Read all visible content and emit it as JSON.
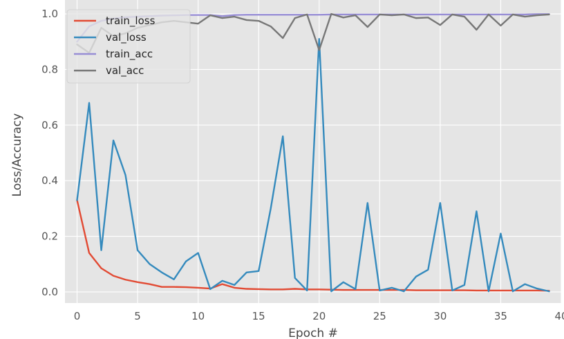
{
  "chart_data": {
    "type": "line",
    "title": "",
    "xlabel": "Epoch #",
    "ylabel": "Loss/Accuracy",
    "xlim": [
      -1,
      40
    ],
    "ylim": [
      -0.04,
      1.05
    ],
    "xticks": [
      0,
      5,
      10,
      15,
      20,
      25,
      30,
      35,
      40
    ],
    "yticks": [
      0.0,
      0.2,
      0.4,
      0.6,
      0.8,
      1.0
    ],
    "xtick_labels": [
      "0",
      "5",
      "10",
      "15",
      "20",
      "25",
      "30",
      "35",
      "40"
    ],
    "ytick_labels": [
      "0.0",
      "0.2",
      "0.4",
      "0.6",
      "0.8",
      "1.0"
    ],
    "grid": true,
    "legend_position": "top-left",
    "x": [
      0,
      1,
      2,
      3,
      4,
      5,
      6,
      7,
      8,
      9,
      10,
      11,
      12,
      13,
      14,
      15,
      16,
      17,
      18,
      19,
      20,
      21,
      22,
      23,
      24,
      25,
      26,
      27,
      28,
      29,
      30,
      31,
      32,
      33,
      34,
      35,
      36,
      37,
      38,
      39
    ],
    "series": [
      {
        "name": "train_loss",
        "color": "#E24A33",
        "values": [
          0.33,
          0.14,
          0.085,
          0.058,
          0.044,
          0.035,
          0.028,
          0.018,
          0.018,
          0.017,
          0.015,
          0.012,
          0.028,
          0.015,
          0.011,
          0.01,
          0.009,
          0.009,
          0.011,
          0.009,
          0.009,
          0.008,
          0.007,
          0.007,
          0.007,
          0.007,
          0.007,
          0.007,
          0.006,
          0.006,
          0.006,
          0.006,
          0.006,
          0.005,
          0.005,
          0.005,
          0.005,
          0.005,
          0.005,
          0.004
        ]
      },
      {
        "name": "val_loss",
        "color": "#348ABD",
        "values": [
          0.33,
          0.68,
          0.15,
          0.545,
          0.42,
          0.15,
          0.1,
          0.07,
          0.045,
          0.11,
          0.14,
          0.01,
          0.04,
          0.025,
          0.07,
          0.075,
          0.3,
          0.56,
          0.05,
          0.005,
          0.91,
          0.002,
          0.035,
          0.01,
          0.32,
          0.005,
          0.015,
          0.002,
          0.055,
          0.08,
          0.32,
          0.005,
          0.025,
          0.29,
          0.002,
          0.21,
          0.002,
          0.028,
          0.012,
          0.002
        ]
      },
      {
        "name": "train_acc",
        "color": "#988ED5",
        "values": [
          0.9,
          0.955,
          0.975,
          0.983,
          0.988,
          0.99,
          0.992,
          0.994,
          0.995,
          0.996,
          0.996,
          0.996,
          0.992,
          0.996,
          0.997,
          0.997,
          0.997,
          0.997,
          0.997,
          0.997,
          0.997,
          0.998,
          0.998,
          0.998,
          0.998,
          0.998,
          0.998,
          0.998,
          0.998,
          0.998,
          0.998,
          0.998,
          0.998,
          0.998,
          0.998,
          0.998,
          0.998,
          0.998,
          0.999,
          0.999
        ]
      },
      {
        "name": "val_acc",
        "color": "#777777",
        "values": [
          0.89,
          0.86,
          0.95,
          0.92,
          0.93,
          0.95,
          0.96,
          0.97,
          0.975,
          0.97,
          0.965,
          0.995,
          0.985,
          0.99,
          0.978,
          0.975,
          0.955,
          0.913,
          0.985,
          0.998,
          0.87,
          1.0,
          0.987,
          0.995,
          0.953,
          0.998,
          0.995,
          0.998,
          0.985,
          0.987,
          0.96,
          0.998,
          0.99,
          0.943,
          0.998,
          0.958,
          0.998,
          0.99,
          0.995,
          0.998
        ]
      }
    ]
  }
}
